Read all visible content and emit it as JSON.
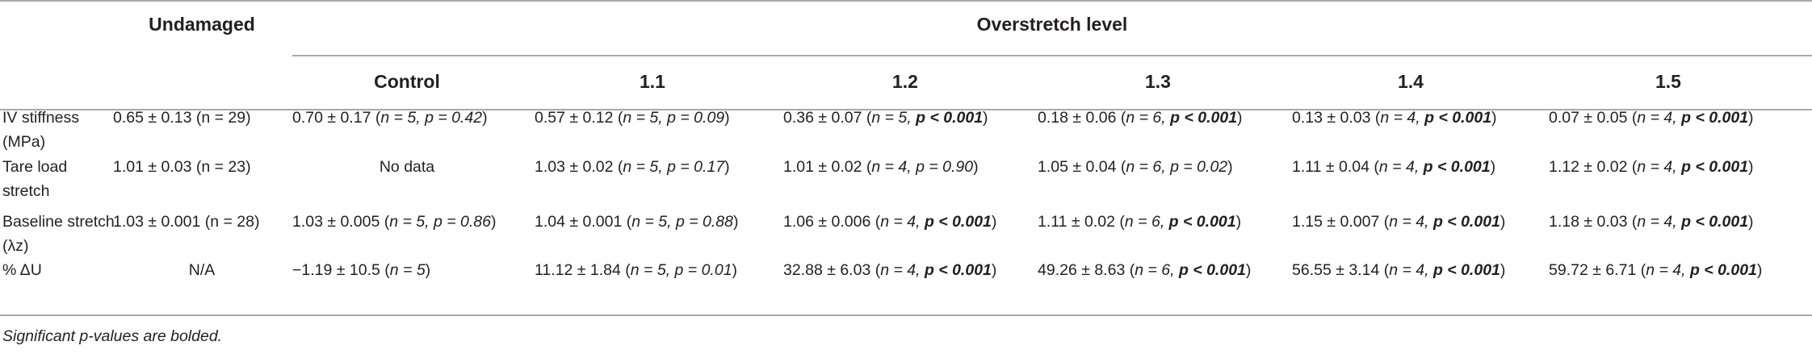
{
  "header": {
    "undamaged": "Undamaged",
    "overstretch_level": "Overstretch level",
    "columns": [
      "Control",
      "1.1",
      "1.2",
      "1.3",
      "1.4",
      "1.5"
    ]
  },
  "rows": [
    {
      "label": "IV stiffness (MPa)",
      "undamaged": "0.65 ± 0.13 (n = 29)",
      "cells": [
        {
          "value": "0.70 ± 0.17 (",
          "n": "n = 5, ",
          "p": "p = 0.42",
          "sig": false,
          "tail": ")"
        },
        {
          "value": "0.57 ± 0.12 (",
          "n": "n = 5, ",
          "p": "p = 0.09",
          "sig": false,
          "tail": ")"
        },
        {
          "value": "0.36 ± 0.07 (",
          "n": "n = 5, ",
          "p": "p < 0.001",
          "sig": true,
          "tail": ")"
        },
        {
          "value": "0.18 ± 0.06 (",
          "n": "n = 6, ",
          "p": "p < 0.001",
          "sig": true,
          "tail": ")"
        },
        {
          "value": "0.13 ± 0.03 (",
          "n": "n = 4, ",
          "p": "p < 0.001",
          "sig": true,
          "tail": ")"
        },
        {
          "value": "0.07 ± 0.05 (",
          "n": "n = 4, ",
          "p": "p < 0.001",
          "sig": true,
          "tail": ")"
        }
      ]
    },
    {
      "label": "Tare load stretch",
      "undamaged": "1.01 ± 0.03 (n = 23)",
      "cells": [
        {
          "plain": "No data"
        },
        {
          "value": "1.03 ± 0.02 (",
          "n": "n = 5, ",
          "p": "p = 0.17",
          "sig": false,
          "tail": ")"
        },
        {
          "value": "1.01 ± 0.02 (",
          "n": "n = 4, ",
          "p": "p = 0.90",
          "sig": false,
          "tail": ")"
        },
        {
          "value": "1.05 ± 0.04 (",
          "n": "n = 6, ",
          "p": "p = 0.02",
          "sig": false,
          "tail": ")"
        },
        {
          "value": "1.11 ± 0.04 (",
          "n": "n = 4, ",
          "p": "p < 0.001",
          "sig": true,
          "tail": ")"
        },
        {
          "value": "1.12 ± 0.02 (",
          "n": "n = 4, ",
          "p": "p < 0.001",
          "sig": true,
          "tail": ")"
        }
      ]
    },
    {
      "label": "Baseline stretch (λz)",
      "undamaged": "1.03 ± 0.001 (n = 28)",
      "cells": [
        {
          "value": "1.03 ± 0.005 (",
          "n": "n = 5, ",
          "p": "p = 0.86",
          "sig": false,
          "tail": ")"
        },
        {
          "value": "1.04 ± 0.001 (",
          "n": "n = 5, ",
          "p": "p = 0.88",
          "sig": false,
          "tail": ")"
        },
        {
          "value": "1.06 ± 0.006 (",
          "n": "n = 4, ",
          "p": "p < 0.001",
          "sig": true,
          "tail": ")"
        },
        {
          "value": "1.11 ± 0.02 (",
          "n": "n = 6, ",
          "p": "p < 0.001",
          "sig": true,
          "tail": ")"
        },
        {
          "value": "1.15 ± 0.007 (",
          "n": "n = 4, ",
          "p": "p < 0.001",
          "sig": true,
          "tail": ")"
        },
        {
          "value": "1.18 ± 0.03 (",
          "n": "n = 4, ",
          "p": "p < 0.001",
          "sig": true,
          "tail": ")"
        }
      ]
    },
    {
      "label": "% ΔU",
      "undamaged": "N/A",
      "cells": [
        {
          "value": "−1.19 ± 10.5 (",
          "n": "n = 5",
          "p": "",
          "sig": false,
          "tail": ")"
        },
        {
          "value": "11.12 ± 1.84 (",
          "n": "n = 5, ",
          "p": "p = 0.01",
          "sig": false,
          "tail": ")"
        },
        {
          "value": "32.88 ± 6.03 (",
          "n": "n = 4, ",
          "p": "p < 0.001",
          "sig": true,
          "tail": ")"
        },
        {
          "value": "49.26 ± 8.63 (",
          "n": "n = 6, ",
          "p": "p < 0.001",
          "sig": true,
          "tail": ")"
        },
        {
          "value": "56.55 ± 3.14 (",
          "n": "n = 4, ",
          "p": "p < 0.001",
          "sig": true,
          "tail": ")"
        },
        {
          "value": "59.72 ± 6.71 (",
          "n": "n = 4, ",
          "p": "p < 0.001",
          "sig": true,
          "tail": ")"
        }
      ]
    }
  ],
  "footnote": "Significant p-values are bolded."
}
